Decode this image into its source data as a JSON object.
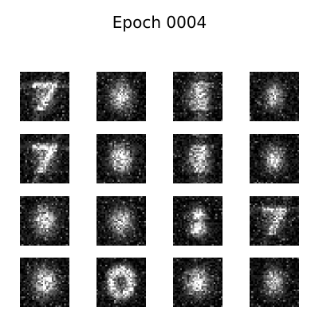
{
  "figure": {
    "title": "Epoch 0004",
    "grid": {
      "rows": 4,
      "cols": 4
    },
    "tile_resolution": 28,
    "samples": [
      {
        "id": "r1c1",
        "brightness": 0.62,
        "shape": "seven"
      },
      {
        "id": "r1c2",
        "brightness": 0.55,
        "shape": "blob"
      },
      {
        "id": "r1c3",
        "brightness": 0.6,
        "shape": "three"
      },
      {
        "id": "r1c4",
        "brightness": 0.5,
        "shape": "oval"
      },
      {
        "id": "r2c1",
        "brightness": 0.65,
        "shape": "seven"
      },
      {
        "id": "r2c2",
        "brightness": 0.62,
        "shape": "blob"
      },
      {
        "id": "r2c3",
        "brightness": 0.58,
        "shape": "three"
      },
      {
        "id": "r2c4",
        "brightness": 0.55,
        "shape": "oval"
      },
      {
        "id": "r3c1",
        "brightness": 0.57,
        "shape": "blob"
      },
      {
        "id": "r3c2",
        "brightness": 0.5,
        "shape": "blob"
      },
      {
        "id": "r3c3",
        "brightness": 0.66,
        "shape": "eight"
      },
      {
        "id": "r3c4",
        "brightness": 0.52,
        "shape": "seven"
      },
      {
        "id": "r4c1",
        "brightness": 0.64,
        "shape": "blob"
      },
      {
        "id": "r4c2",
        "brightness": 0.57,
        "shape": "zero"
      },
      {
        "id": "r4c3",
        "brightness": 0.58,
        "shape": "blob"
      },
      {
        "id": "r4c4",
        "brightness": 0.55,
        "shape": "oval"
      }
    ],
    "colors": {
      "background": "#ffffff",
      "tile_background": "#000000",
      "text": "#000000"
    }
  }
}
